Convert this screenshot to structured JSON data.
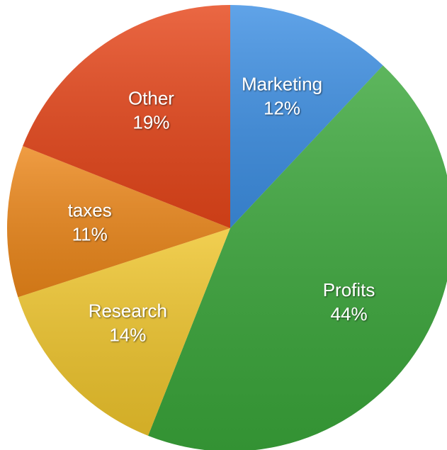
{
  "chart_data": {
    "type": "pie",
    "categories": [
      "Marketing",
      "Profits",
      "Research",
      "taxes",
      "Other"
    ],
    "values": [
      12,
      44,
      14,
      11,
      19
    ],
    "value_labels": [
      "12%",
      "44%",
      "14%",
      "11%",
      "19%"
    ],
    "colors": [
      "#3d8fe3",
      "#3aa63a",
      "#efc52c",
      "#ec871a",
      "#e6461a"
    ]
  }
}
